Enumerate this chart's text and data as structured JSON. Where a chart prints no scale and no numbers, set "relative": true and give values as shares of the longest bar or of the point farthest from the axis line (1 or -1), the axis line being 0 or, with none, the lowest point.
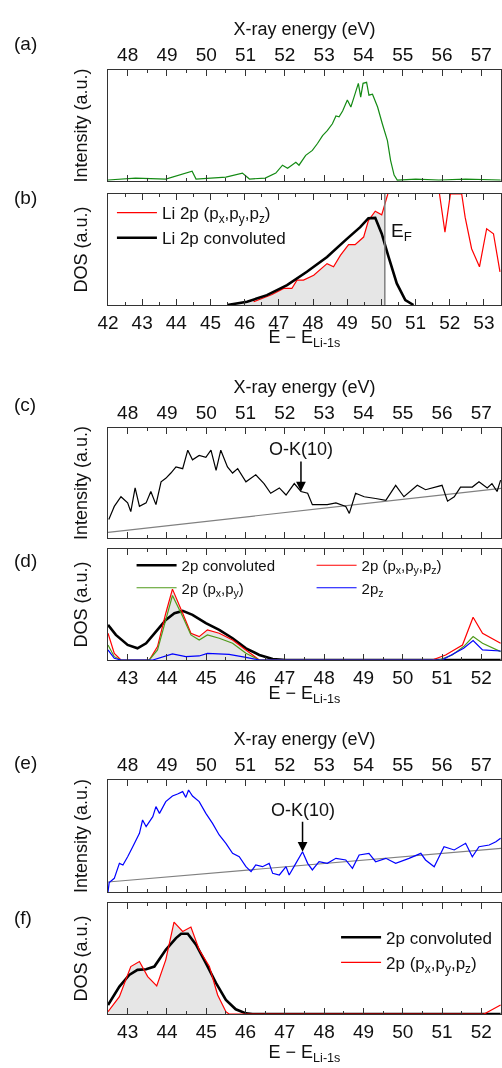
{
  "chart_data": [
    {
      "type": "line",
      "relative": true,
      "xlabel": "X-ray energy (eV)",
      "xlim": [
        47.5,
        57.5
      ],
      "xticks": [
        48,
        49,
        50,
        51,
        52,
        53,
        54,
        55,
        56,
        57
      ],
      "ylabel": "Intensity (a.u.)",
      "annotations": [
        "(a)"
      ],
      "series": [
        {
          "color": "#138a13",
          "x": [
            47.5,
            48.2,
            48.97,
            49.64,
            49.74,
            50.5,
            50.92,
            51.1,
            51.5,
            51.77,
            51.94,
            52.07,
            52.28,
            52.36,
            52.53,
            52.7,
            52.83,
            52.96,
            53.08,
            53.21,
            53.3,
            53.38,
            53.47,
            53.59,
            53.68,
            53.76,
            53.87,
            53.93,
            53.99,
            54.08,
            54.14,
            54.23,
            54.36,
            54.48,
            54.61,
            54.69,
            54.78,
            54.86,
            55.33,
            55.92,
            56.6,
            57.49
          ],
          "values": [
            0.01,
            0.03,
            0.02,
            0.1,
            0.02,
            0.04,
            0.08,
            0.02,
            0.03,
            0.08,
            0.16,
            0.13,
            0.19,
            0.16,
            0.26,
            0.31,
            0.38,
            0.46,
            0.51,
            0.58,
            0.66,
            0.65,
            0.71,
            0.82,
            0.75,
            0.85,
            0.99,
            0.85,
            0.99,
            1,
            0.87,
            0.88,
            0.75,
            0.58,
            0.41,
            0.21,
            0.06,
            0.01,
            0.02,
            0.01,
            0.02,
            0.01
          ]
        }
      ]
    },
    {
      "type": "line",
      "relative": true,
      "xlabel": "E − E$_{Li-1s}$",
      "xlim": [
        42,
        53.5
      ],
      "xticks": [
        42,
        43,
        44,
        45,
        46,
        47,
        48,
        49,
        50,
        51,
        52,
        53
      ],
      "ylabel": "DOS (a.u.)",
      "annotations": [
        "(b)"
      ],
      "legend": "top left",
      "ref_lines": [
        {
          "axis": "x",
          "value": 50.1,
          "label": "E$_{F}$",
          "color": "#808080"
        }
      ],
      "series": [
        {
          "type": "area",
          "color": "#e6e6e6",
          "x": [
            45.49,
            46.26,
            46.8,
            47.14,
            47.38,
            47.53,
            47.72,
            48.02,
            48.41,
            48.6,
            48.8,
            49.04,
            49.23,
            49.48,
            49.62,
            49.82,
            50.01,
            50.1,
            50.1
          ],
          "values": [
            0,
            0.029,
            0.095,
            0.149,
            0.149,
            0.224,
            0.224,
            0.268,
            0.373,
            0.344,
            0.447,
            0.544,
            0.544,
            0.612,
            0.761,
            0.845,
            0.812,
            0.906,
            0
          ]
        },
        {
          "name": "Li 2p (p$_{x}$,p$_{y}$,p$_{z}$)",
          "color": "#ff0000",
          "x": [
            46.26,
            46.8,
            47.14,
            47.38,
            47.53,
            47.72,
            48.02,
            48.41,
            48.6,
            48.8,
            49.04,
            49.23,
            49.48,
            49.62,
            49.82,
            50.01,
            50.16,
            50.19,
            51,
            51.7,
            51.86,
            52.02,
            52.1,
            52.35,
            52.45,
            52.64,
            52.87,
            53.08,
            53.28,
            53.47
          ],
          "values": [
            0.029,
            0.095,
            0.149,
            0.149,
            0.224,
            0.224,
            0.268,
            0.373,
            0.344,
            0.447,
            0.544,
            0.544,
            0.612,
            0.761,
            0.845,
            0.812,
            0.971,
            1,
            null,
            1,
            0.656,
            1,
            1,
            1,
            0.791,
            0.507,
            0.344,
            0.687,
            0.642,
            0.299
          ]
        },
        {
          "name": "Li 2p convoluted",
          "color": "#000000",
          "x": [
            45.49,
            46.07,
            46.65,
            47.24,
            47.82,
            48.41,
            48.99,
            49.38,
            49.62,
            49.82,
            50.01,
            50.21,
            50.45,
            50.7,
            50.94
          ],
          "values": [
            0,
            0.029,
            0.089,
            0.179,
            0.299,
            0.433,
            0.596,
            0.701,
            0.782,
            0.785,
            0.642,
            0.433,
            0.194,
            0.045,
            0
          ]
        }
      ]
    },
    {
      "type": "line",
      "relative": true,
      "xlabel": "X-ray energy (eV)",
      "xlim": [
        47.5,
        57.5
      ],
      "xticks": [
        48,
        49,
        50,
        51,
        52,
        53,
        54,
        55,
        56,
        57
      ],
      "ylabel": "Intensity (a.u.)",
      "annotations": [
        "(c)",
        {
          "text": "O-K(10)",
          "x": 52.41,
          "y": 0.53
        }
      ],
      "series": [
        {
          "color": "#808080",
          "x": [
            47.5,
            57.5
          ],
          "values": [
            0.064,
            0.566
          ]
        },
        {
          "color": "#000000",
          "x": [
            47.52,
            47.66,
            47.83,
            48,
            48.08,
            48.19,
            48.3,
            48.47,
            48.59,
            48.72,
            48.85,
            48.97,
            49.1,
            49.23,
            49.4,
            49.53,
            49.65,
            49.82,
            49.99,
            50.12,
            50.25,
            50.37,
            50.54,
            50.67,
            50.8,
            51.01,
            51.26,
            51.47,
            51.64,
            51.86,
            52.03,
            52.24,
            52.41,
            52.58,
            52.7,
            52.87,
            53.08,
            53.3,
            53.55,
            53.64,
            53.8,
            54.02,
            54.31,
            54.57,
            54.82,
            55.03,
            55.37,
            55.58,
            56,
            56.14,
            56.31,
            56.47,
            56.77,
            56.94,
            57.15,
            57.27,
            57.4,
            57.49
          ],
          "values": [
            0.21,
            0.36,
            0.47,
            0.4,
            0.3,
            0.57,
            0.36,
            0.4,
            0.53,
            0.38,
            0.64,
            0.68,
            0.74,
            0.81,
            0.79,
            1,
            0.89,
            0.94,
            0.92,
            1,
            0.77,
            1,
            0.81,
            0.74,
            0.79,
            0.64,
            0.72,
            0.62,
            0.51,
            0.57,
            0.49,
            0.62,
            0.53,
            0.51,
            0.38,
            0.38,
            0.38,
            0.4,
            0.36,
            0.28,
            0.51,
            0.47,
            0.45,
            0.43,
            0.6,
            0.47,
            0.6,
            0.55,
            0.6,
            0.42,
            0.47,
            0.58,
            0.58,
            0.64,
            0.57,
            0.62,
            0.53,
            0.66
          ]
        }
      ]
    },
    {
      "type": "line",
      "relative": true,
      "xlabel": "E − E$_{Li-1s}$",
      "xlim": [
        42.5,
        52.5
      ],
      "xticks": [
        43,
        44,
        45,
        46,
        47,
        48,
        49,
        50,
        51,
        52
      ],
      "ylabel": "DOS (a.u.)",
      "annotations": [
        "(d)"
      ],
      "legend": "top",
      "series": [
        {
          "type": "area",
          "color": "#e6e6e6",
          "x": [
            43.55,
            43.76,
            43.97,
            44.14,
            44.4,
            44.61,
            44.82,
            45.03,
            45.33,
            45.67,
            46.01,
            46.35
          ],
          "values": [
            0,
            0.189,
            0.66,
            1,
            0.66,
            0.377,
            0.33,
            0.425,
            0.377,
            0.283,
            0.142,
            0
          ]
        },
        {
          "name": "2p convoluted",
          "color": "#000000",
          "x": [
            42.5,
            42.7,
            43,
            43.25,
            43.47,
            43.72,
            43.97,
            44.19,
            44.4,
            44.65,
            44.99,
            45.33,
            45.67,
            46.01,
            46.35,
            46.69,
            47.03,
            52.49
          ],
          "values": [
            0.495,
            0.354,
            0.212,
            0.165,
            0.236,
            0.401,
            0.566,
            0.66,
            0.693,
            0.637,
            0.519,
            0.425,
            0.307,
            0.165,
            0.071,
            0.014,
            0,
            0
          ]
        },
        {
          "name": "2p (p$_{x}$,p$_{y}$,p$_{z}$)",
          "color": "#ff0000",
          "x": [
            42.5,
            42.66,
            42.83,
            43.55,
            43.76,
            43.97,
            44.14,
            44.4,
            44.61,
            44.82,
            45.03,
            45.33,
            45.67,
            46.01,
            46.35,
            50.75,
            51.09,
            51.52,
            51.79,
            52.03,
            52.49
          ],
          "values": [
            0.377,
            0.094,
            0,
            0,
            0.189,
            0.66,
            1,
            0.66,
            0.377,
            0.33,
            0.425,
            0.377,
            0.283,
            0.142,
            0,
            0,
            0.071,
            0.212,
            0.604,
            0.377,
            0.236
          ]
        },
        {
          "name": "2p (p$_{x}$,p$_{y}$)",
          "color": "#4f9a1a",
          "x": [
            42.5,
            42.66,
            42.83,
            43.55,
            43.76,
            43.97,
            44.14,
            44.4,
            44.61,
            44.82,
            45.03,
            45.33,
            45.67,
            46.01,
            46.35,
            50.92,
            51.26,
            51.55,
            51.79,
            52.03,
            52.49
          ],
          "values": [
            0.212,
            0.047,
            0,
            0,
            0.142,
            0.566,
            0.91,
            0.613,
            0.354,
            0.283,
            0.354,
            0.307,
            0.236,
            0.094,
            0,
            0,
            0.071,
            0.189,
            0.33,
            0.236,
            0.118
          ]
        },
        {
          "name": "2p$_{z}$",
          "color": "#0000ff",
          "x": [
            42.5,
            42.66,
            42.83,
            43.64,
            44.14,
            44.48,
            44.82,
            45.03,
            45.58,
            46.01,
            46.35,
            51,
            51.55,
            51.79,
            52.03,
            52.49
          ],
          "values": [
            0.142,
            0.024,
            0,
            0,
            0.085,
            0.047,
            0.057,
            0.094,
            0.08,
            0.038,
            0,
            0,
            0.165,
            0.274,
            0.142,
            0.127
          ]
        }
      ]
    },
    {
      "type": "line",
      "relative": true,
      "xlabel": "X-ray energy (eV)",
      "xlim": [
        47.5,
        57.5
      ],
      "xticks": [
        48,
        49,
        50,
        51,
        52,
        53,
        54,
        55,
        56,
        57
      ],
      "ylabel": "Intensity (a.u.)",
      "annotations": [
        "(e)",
        {
          "text": "O-K(10)",
          "x": 52.45,
          "y": 0.395
        }
      ],
      "series": [
        {
          "color": "#808080",
          "x": [
            47.5,
            57.5
          ],
          "values": [
            0.098,
            0.428
          ]
        },
        {
          "color": "#0000ff",
          "x": [
            47.5,
            47.53,
            47.66,
            47.79,
            47.88,
            48,
            48.13,
            48.3,
            48.38,
            48.47,
            48.64,
            48.72,
            48.81,
            48.97,
            49.14,
            49.27,
            49.4,
            49.48,
            49.55,
            49.65,
            49.82,
            49.99,
            50.16,
            50.33,
            50.5,
            50.67,
            50.84,
            51.01,
            51.14,
            51.26,
            51.43,
            51.6,
            51.69,
            51.86,
            52.03,
            52.11,
            52.28,
            52.45,
            52.58,
            52.7,
            52.87,
            53.08,
            53.3,
            53.55,
            53.72,
            53.89,
            54.14,
            54.31,
            54.57,
            54.82,
            55.16,
            55.46,
            55.58,
            55.8,
            56.05,
            56.31,
            56.6,
            56.77,
            56.94,
            57.2,
            57.37,
            57.49
          ],
          "values": [
            0,
            0.092,
            0.134,
            0.281,
            0.265,
            0.346,
            0.444,
            0.575,
            0.706,
            0.641,
            0.739,
            0.837,
            0.771,
            0.886,
            0.941,
            0.961,
            0.984,
            0.928,
            1,
            0.941,
            0.886,
            0.771,
            0.673,
            0.559,
            0.477,
            0.379,
            0.346,
            0.248,
            0.199,
            0.265,
            0.248,
            0.281,
            0.183,
            0.167,
            0.248,
            0.167,
            0.281,
            0.395,
            0.281,
            0.216,
            0.297,
            0.281,
            0.33,
            0.314,
            0.232,
            0.363,
            0.379,
            0.297,
            0.33,
            0.281,
            0.33,
            0.379,
            0.314,
            0.248,
            0.444,
            0.412,
            0.477,
            0.346,
            0.444,
            0.461,
            0.493,
            0.526
          ]
        }
      ]
    },
    {
      "type": "line",
      "relative": true,
      "xlabel": "E − E$_{Li-1s}$",
      "xlim": [
        42.5,
        52.5
      ],
      "xticks": [
        43,
        44,
        45,
        46,
        47,
        48,
        49,
        50,
        51,
        52
      ],
      "ylabel": "DOS (a.u.)",
      "annotations": [
        "(f)"
      ],
      "legend": "right",
      "series": [
        {
          "type": "area",
          "color": "#e6e6e6",
          "x": [
            42.5,
            42.79,
            43.08,
            43.3,
            43.51,
            43.74,
            43.97,
            44.18,
            44.4,
            44.61,
            44.82,
            45.08,
            45.29,
            45.5,
            45.58
          ],
          "values": [
            0.025,
            0.189,
            0.516,
            0.571,
            0.407,
            0.305,
            0.589,
            1,
            0.898,
            0.945,
            0.698,
            0.516,
            0.207,
            0.025,
            0
          ]
        },
        {
          "name": "2p convoluted",
          "color": "#000000",
          "x": [
            42.5,
            42.79,
            43.04,
            43.25,
            43.47,
            43.68,
            43.97,
            44.23,
            44.36,
            44.53,
            44.74,
            44.99,
            45.25,
            45.5,
            45.75,
            46.01,
            46.18,
            52.49
          ],
          "values": [
            0.098,
            0.298,
            0.425,
            0.48,
            0.487,
            0.516,
            0.698,
            0.825,
            0.873,
            0.873,
            0.753,
            0.553,
            0.335,
            0.153,
            0.051,
            0.007,
            0,
            0
          ]
        },
        {
          "name": "2p (p$_{x}$,p$_{y}$,p$_{z}$)",
          "color": "#ff0000",
          "x": [
            42.5,
            42.79,
            43.08,
            43.3,
            43.51,
            43.74,
            43.97,
            44.18,
            44.4,
            44.61,
            44.82,
            45.08,
            45.29,
            45.5,
            45.58,
            52.07,
            52.49
          ],
          "values": [
            0.025,
            0.189,
            0.516,
            0.571,
            0.407,
            0.305,
            0.589,
            1,
            0.898,
            0.945,
            0.698,
            0.516,
            0.207,
            0.025,
            0,
            0,
            0.098
          ]
        }
      ]
    }
  ]
}
